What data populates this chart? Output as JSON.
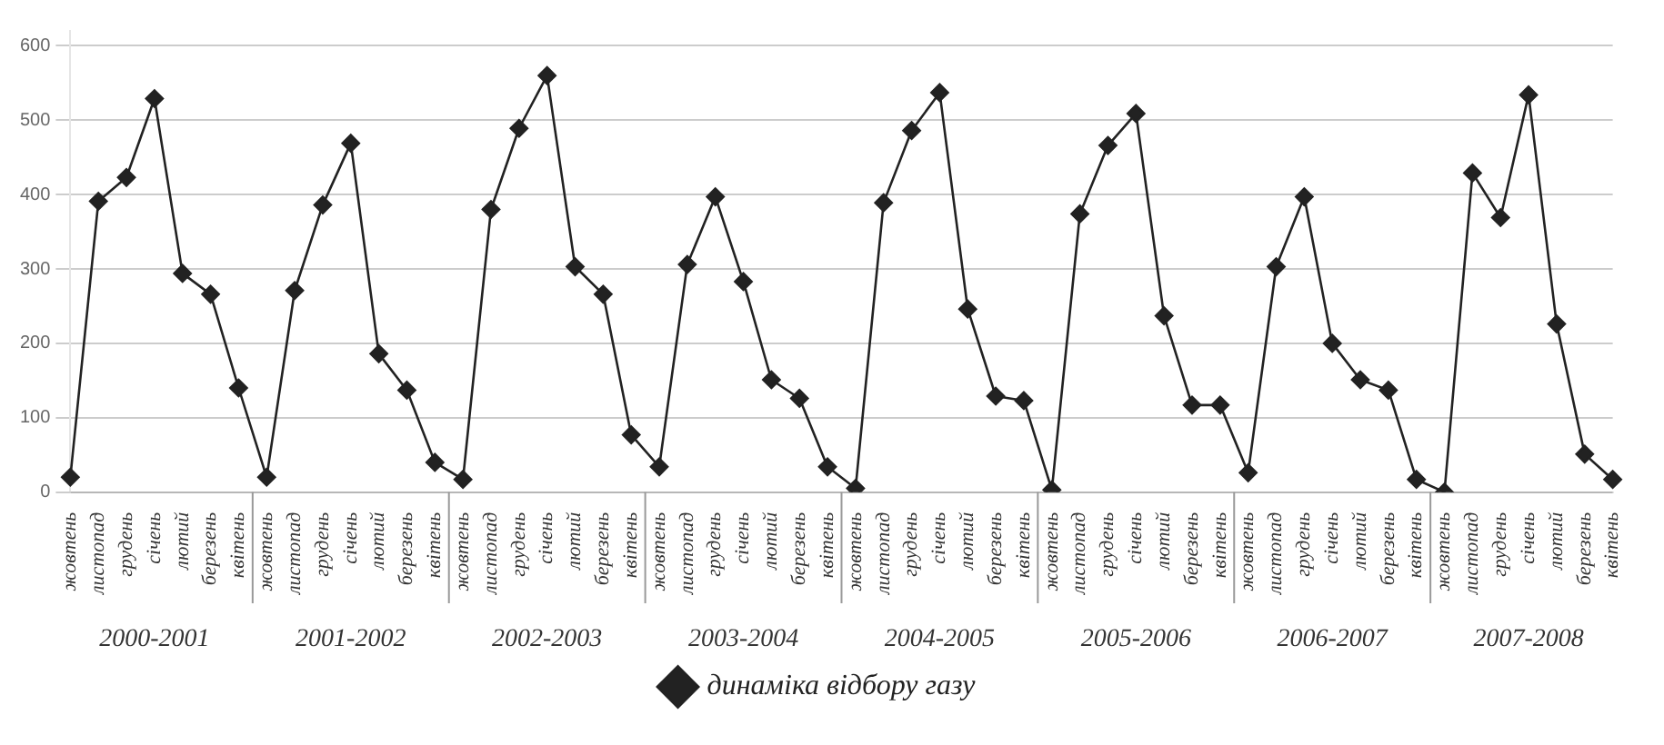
{
  "chart_data": {
    "type": "line",
    "categories": [
      "жовтень",
      "листопад",
      "грудень",
      "січень",
      "лютий",
      "березень",
      "квітень",
      "жовтень",
      "листопад",
      "грудень",
      "січень",
      "лютий",
      "березень",
      "квітень",
      "жовтень",
      "листопад",
      "грудень",
      "січень",
      "лютий",
      "березень",
      "квітень",
      "жовтень",
      "листопад",
      "грудень",
      "січень",
      "лютий",
      "березень",
      "квітень",
      "жовтень",
      "листопад",
      "грудень",
      "січень",
      "лютий",
      "березень",
      "квітень",
      "жовтень",
      "листопад",
      "грудень",
      "січень",
      "лютий",
      "березень",
      "квітень",
      "жовтень",
      "листопад",
      "грудень",
      "січень",
      "лютий",
      "березень",
      "квітень",
      "жовтень",
      "листопад",
      "грудень",
      "січень",
      "лютий",
      "березень",
      "квітень"
    ],
    "series": [
      {
        "name": "динаміка відбору газу",
        "color": "#222222",
        "values": [
          20,
          391,
          423,
          529,
          294,
          266,
          140,
          20,
          271,
          386,
          469,
          186,
          137,
          40,
          17,
          380,
          489,
          560,
          303,
          266,
          77,
          34,
          306,
          397,
          283,
          151,
          126,
          34,
          5,
          389,
          486,
          537,
          246,
          129,
          123,
          3,
          374,
          466,
          509,
          237,
          117,
          117,
          26,
          303,
          397,
          200,
          151,
          137,
          17,
          0,
          429,
          369,
          534,
          226,
          51,
          17
        ]
      }
    ],
    "ylim": [
      0,
      620
    ],
    "yticks": [
      0,
      100,
      200,
      300,
      400,
      500,
      600
    ],
    "grid": "y",
    "legend": "bottom",
    "marker": "diamond",
    "line_style": "solid",
    "annotations": [
      "2000-2001",
      "2001-2002",
      "2002-2003",
      "2003-2004",
      "2004-2005",
      "2005-2006",
      "2006-2007",
      "2007-2008"
    ]
  }
}
